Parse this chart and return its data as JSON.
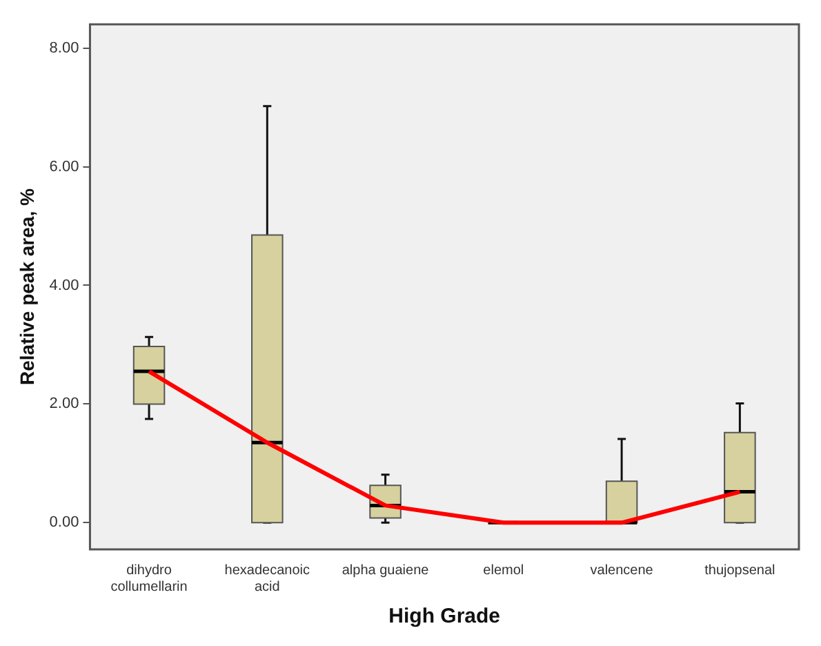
{
  "chart_data": {
    "type": "box",
    "xlabel": "High Grade",
    "ylabel": "Relative peak area, %",
    "categories": [
      "dihydro collumellarin",
      "hexadecanoic acid",
      "alpha guaiene",
      "elemol",
      "valencene",
      "thujopsenal"
    ],
    "series": [
      {
        "type": "box",
        "color": "#d6d19e",
        "boxes": [
          {
            "low": 1.75,
            "q1": 2.0,
            "median": 2.55,
            "q3": 2.97,
            "high": 3.13
          },
          {
            "low": 0,
            "q1": 0,
            "median": 1.35,
            "q3": 4.85,
            "high": 7.02
          },
          {
            "low": 0,
            "q1": 0.08,
            "median": 0.29,
            "q3": 0.63,
            "high": 0.81
          },
          {
            "low": 0,
            "q1": 0,
            "median": 0,
            "q3": 0,
            "high": 0
          },
          {
            "low": 0,
            "q1": 0,
            "median": 0,
            "q3": 0.7,
            "high": 1.41
          },
          {
            "low": 0,
            "q1": 0,
            "median": 0.52,
            "q3": 1.52,
            "high": 2.01
          }
        ]
      },
      {
        "type": "line",
        "color": "#ff0000",
        "values": [
          2.55,
          1.35,
          0.29,
          0,
          0,
          0.52
        ]
      }
    ],
    "ylim": [
      -0.45,
      8.4
    ],
    "yticks": [
      {
        "value": 0,
        "label": "0.00"
      },
      {
        "value": 2,
        "label": "2.00"
      },
      {
        "value": 4,
        "label": "4.00"
      },
      {
        "value": 6,
        "label": "6.00"
      },
      {
        "value": 8,
        "label": "8.00"
      }
    ],
    "grid": false,
    "legend": false,
    "marker": "none"
  }
}
